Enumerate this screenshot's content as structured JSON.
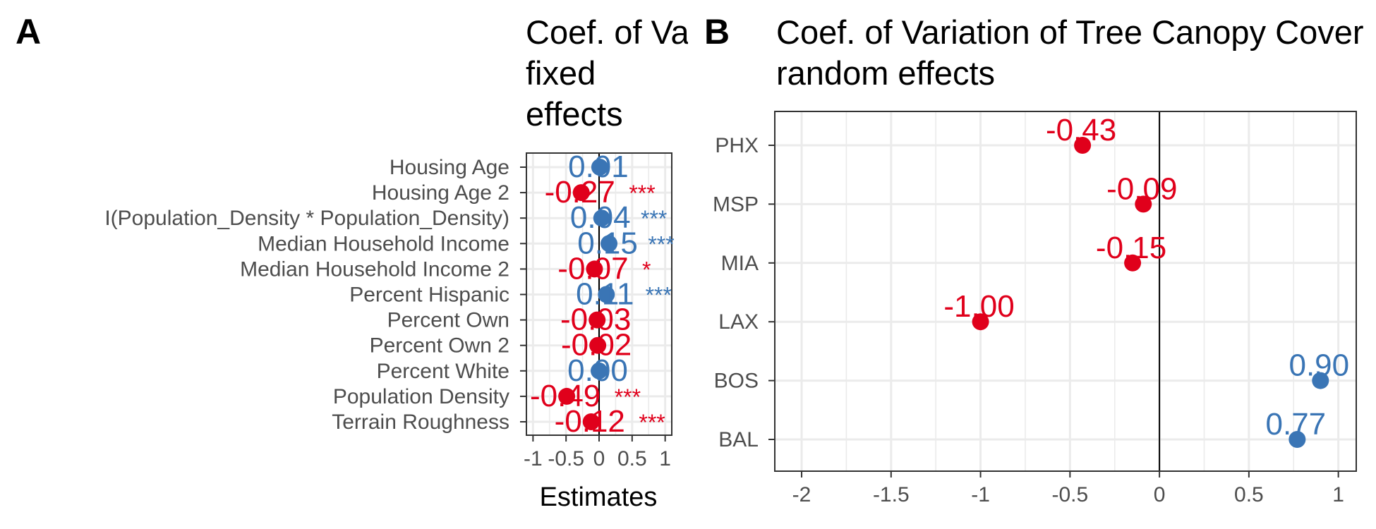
{
  "colors": {
    "positive": "#3a75b5",
    "negative": "#e0001b",
    "grid": "#ebebeb",
    "tick_text": "#4d4d4d"
  },
  "panels": [
    {
      "letter": "A",
      "title_lines": [
        "Coef. of Variation of Tree Canopy Cover",
        "fixed",
        "effects"
      ]
    },
    {
      "letter": "B",
      "title_lines": [
        "Coef. of Variation of Tree Canopy Cover",
        "random effects"
      ]
    }
  ],
  "chart_data": [
    {
      "type": "scatter",
      "title": "Coef. of Variation of Tree Canopy Cover fixed effects",
      "xlabel": "Estimates",
      "ylabel": "",
      "xlim": [
        -1.1,
        1.1
      ],
      "xticks": [
        -1,
        -0.5,
        0,
        0.5,
        1
      ],
      "xtick_labels": [
        "-1",
        "-0.5",
        "0",
        "0.5",
        "1"
      ],
      "grid": true,
      "terms": [
        {
          "label": "Housing Age",
          "estimate": 0.01,
          "value_label": "0.01",
          "stars": ""
        },
        {
          "label": "Housing Age 2",
          "estimate": -0.27,
          "value_label": "-0.27",
          "stars": "***"
        },
        {
          "label": "I(Population_Density * Population_Density)",
          "estimate": 0.04,
          "value_label": "0.04",
          "stars": "***"
        },
        {
          "label": "Median Household Income",
          "estimate": 0.15,
          "value_label": "0.15",
          "stars": "***"
        },
        {
          "label": "Median Household Income 2",
          "estimate": -0.07,
          "value_label": "-0.07",
          "stars": "*"
        },
        {
          "label": "Percent Hispanic",
          "estimate": 0.11,
          "value_label": "0.11",
          "stars": "***"
        },
        {
          "label": "Percent Own",
          "estimate": -0.03,
          "value_label": "-0.03",
          "stars": ""
        },
        {
          "label": "Percent Own 2",
          "estimate": -0.02,
          "value_label": "-0.02",
          "stars": ""
        },
        {
          "label": "Percent White",
          "estimate": 0.0,
          "value_label": "0.00",
          "stars": ""
        },
        {
          "label": "Population Density",
          "estimate": -0.49,
          "value_label": "-0.49",
          "stars": "***"
        },
        {
          "label": "Terrain Roughness",
          "estimate": -0.12,
          "value_label": "-0.12",
          "stars": "***"
        }
      ]
    },
    {
      "type": "scatter",
      "title": "Coef. of Variation of Tree Canopy Cover random effects",
      "xlabel": "",
      "ylabel": "",
      "xlim": [
        -2.15,
        1.1
      ],
      "xticks": [
        -2,
        -1.5,
        -1,
        -0.5,
        0,
        0.5,
        1
      ],
      "xtick_labels": [
        "-2",
        "-1.5",
        "-1",
        "-0.5",
        "0",
        "0.5",
        "1"
      ],
      "grid": true,
      "terms": [
        {
          "label": "PHX",
          "estimate": -0.43,
          "value_label": "-0.43",
          "stars": ""
        },
        {
          "label": "MSP",
          "estimate": -0.09,
          "value_label": "-0.09",
          "stars": ""
        },
        {
          "label": "MIA",
          "estimate": -0.15,
          "value_label": "-0.15",
          "stars": ""
        },
        {
          "label": "LAX",
          "estimate": -1.0,
          "value_label": "-1.00",
          "stars": ""
        },
        {
          "label": "BOS",
          "estimate": 0.9,
          "value_label": "0.90",
          "stars": ""
        },
        {
          "label": "BAL",
          "estimate": 0.77,
          "value_label": "0.77",
          "stars": ""
        }
      ]
    }
  ]
}
